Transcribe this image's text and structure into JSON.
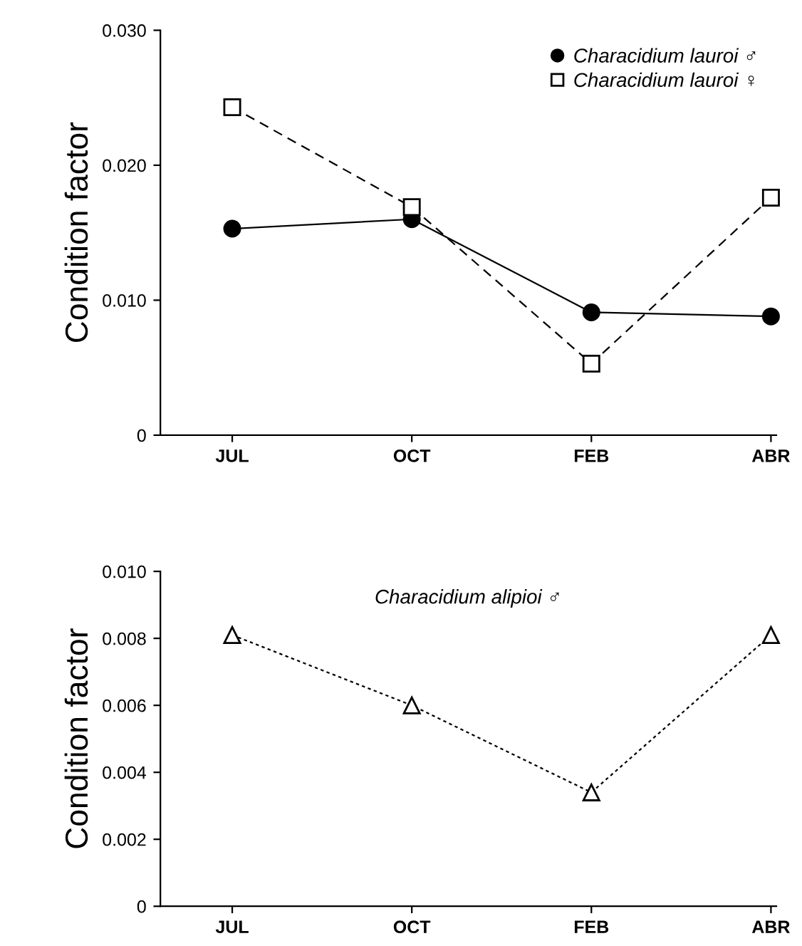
{
  "chart_data": [
    {
      "type": "line",
      "ylabel": "Condition factor",
      "categories": [
        "JUL",
        "OCT",
        "FEB",
        "ABR"
      ],
      "ylim": [
        0,
        0.03
      ],
      "yticks": [
        0,
        {
          "value": 0.01,
          "label": "0.010"
        },
        {
          "value": 0.02,
          "label": "0.020"
        },
        {
          "value": 0.03,
          "label": "0.030"
        }
      ],
      "grid": false,
      "legend": "top right",
      "series": [
        {
          "name": "Characidium lauroi ♂",
          "color": "#000000",
          "marker": "circle",
          "line_style": "solid",
          "values": [
            0.0153,
            0.016,
            0.0091,
            0.0088
          ]
        },
        {
          "name": "Characidium lauroi ♀",
          "color": "#000000",
          "marker": "square",
          "line_style": "dashed",
          "values": [
            0.0243,
            0.0169,
            0.0053,
            0.0176
          ]
        }
      ]
    },
    {
      "type": "line",
      "ylabel": "Condition factor",
      "categories": [
        "JUL",
        "OCT",
        "FEB",
        "ABR"
      ],
      "ylim": [
        0,
        0.01
      ],
      "yticks": [
        0,
        {
          "value": 0.002,
          "label": "0.002"
        },
        {
          "value": 0.004,
          "label": "0.004"
        },
        {
          "value": 0.006,
          "label": "0.006"
        },
        {
          "value": 0.008,
          "label": "0.008"
        },
        {
          "value": 0.01,
          "label": "0.010"
        }
      ],
      "grid": false,
      "legend": "top",
      "series": [
        {
          "name": "Characidium alipioi ♂",
          "color": "#000000",
          "marker": "triangle",
          "line_style": "dotted",
          "values": [
            0.0081,
            0.006,
            0.0034,
            0.0081
          ]
        }
      ]
    }
  ]
}
